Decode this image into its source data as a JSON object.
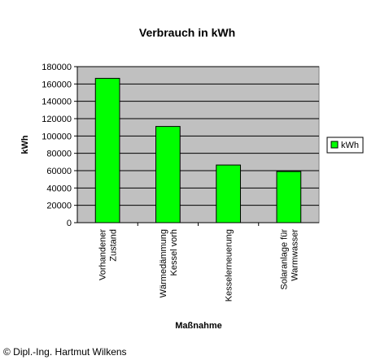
{
  "chart_data": {
    "type": "bar",
    "title": "Verbrauch in kWh",
    "xlabel": "Maßnahme",
    "ylabel": "kWh",
    "categories": [
      [
        "Vorhandener",
        "Zustand"
      ],
      [
        "Wärmedämmung",
        "Kessel vorh"
      ],
      [
        "Kesselerneuerung"
      ],
      [
        "Solaranlage für",
        "Warmwasser"
      ]
    ],
    "series": [
      {
        "name": "kWh",
        "values": [
          166500,
          111000,
          66500,
          59000
        ]
      }
    ],
    "ylim": [
      0,
      180000
    ],
    "yticks": [
      0,
      20000,
      40000,
      60000,
      80000,
      100000,
      120000,
      140000,
      160000,
      180000
    ],
    "ytick_labels": [
      "0",
      "20000",
      "40000",
      "60000",
      "80000",
      "100000",
      "120000",
      "140000",
      "160000",
      "180000"
    ],
    "grid": true,
    "legend_position": "right",
    "colors": {
      "bar": "#00ff00",
      "plot_bg": "#c0c0c0",
      "grid": "#000000"
    }
  },
  "footer": {
    "credit": "© Dipl.-Ing. Hartmut Wilkens"
  }
}
